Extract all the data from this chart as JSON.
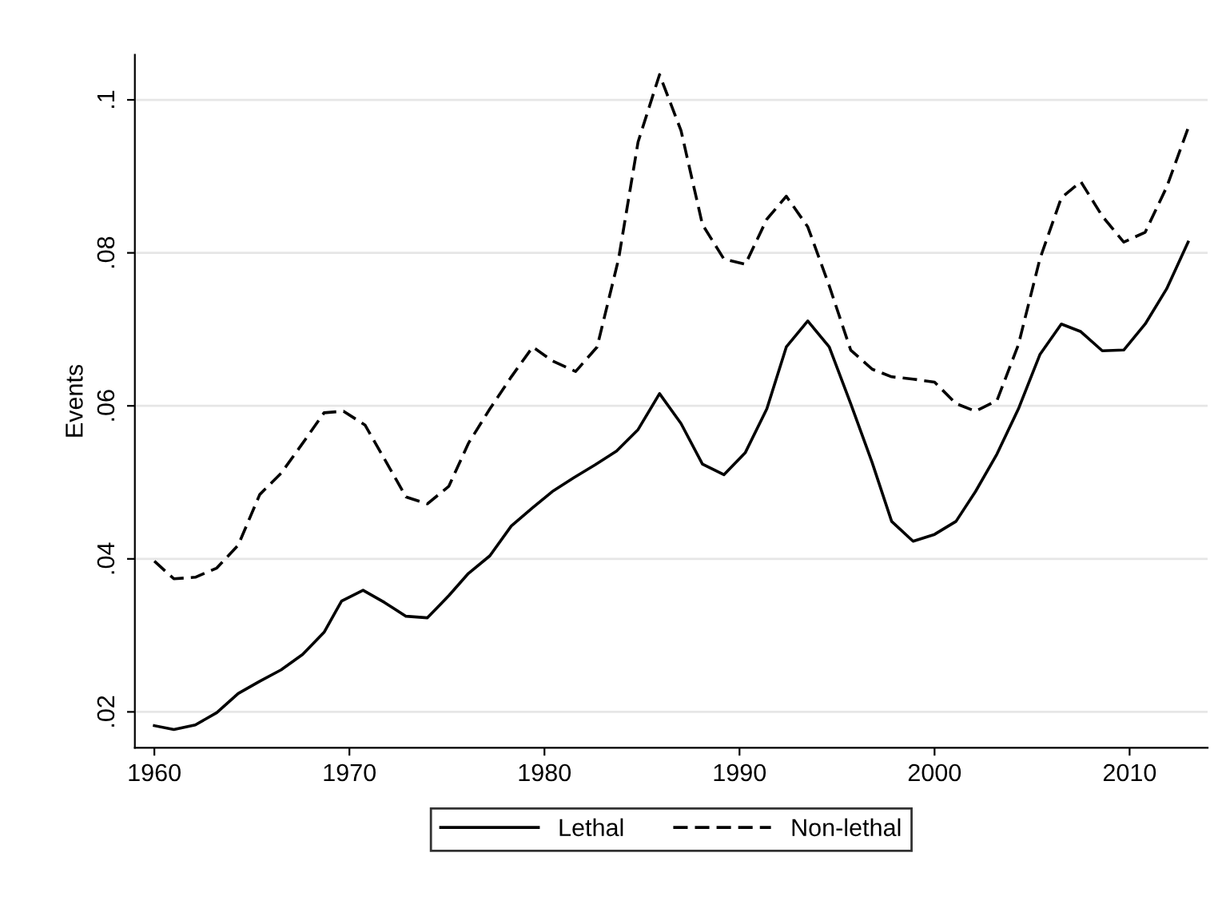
{
  "chart_data": {
    "type": "line",
    "ylabel": "Events",
    "xlim": [
      1959,
      2014
    ],
    "xticks": [
      1960,
      1970,
      1980,
      1990,
      2000,
      2010
    ],
    "ylim": [
      0.0153,
      0.1059
    ],
    "yticks": [
      {
        "value": 0.02,
        "label": ".02"
      },
      {
        "value": 0.04,
        "label": ".04"
      },
      {
        "value": 0.06,
        "label": ".06"
      },
      {
        "value": 0.08,
        "label": ".08"
      },
      {
        "value": 0.1,
        "label": ".1"
      }
    ],
    "grid": "y",
    "legend": "bottom",
    "marker": "none",
    "series": [
      {
        "name": "Lethal",
        "color": "#000000",
        "line_style": "solid",
        "x": [
          1960.0,
          1961.0,
          1962.1,
          1963.2,
          1964.3,
          1965.4,
          1966.5,
          1967.6,
          1968.7,
          1969.6,
          1970.7,
          1971.8,
          1972.9,
          1974.0,
          1975.1,
          1976.1,
          1977.2,
          1978.3,
          1979.4,
          1980.4,
          1981.5,
          1982.6,
          1983.7,
          1984.8,
          1985.9,
          1987.0,
          1988.1,
          1989.2,
          1990.3,
          1991.4,
          1992.4,
          1993.5,
          1994.6,
          1995.7,
          1996.8,
          1997.8,
          1998.9,
          2000.0,
          2001.1,
          2002.1,
          2003.2,
          2004.3,
          2005.4,
          2006.5,
          2007.5,
          2008.6,
          2009.7,
          2010.8,
          2011.9,
          2013.0
        ],
        "values": [
          0.0182,
          0.0177,
          0.0183,
          0.0199,
          0.0224,
          0.024,
          0.0255,
          0.0275,
          0.0304,
          0.0345,
          0.0359,
          0.0343,
          0.0325,
          0.0323,
          0.0352,
          0.0381,
          0.0404,
          0.0443,
          0.0467,
          0.0488,
          0.0506,
          0.0523,
          0.0541,
          0.0569,
          0.0616,
          0.0577,
          0.0524,
          0.051,
          0.0539,
          0.0596,
          0.0677,
          0.0711,
          0.0677,
          0.0603,
          0.0526,
          0.0449,
          0.0423,
          0.0432,
          0.0449,
          0.0488,
          0.0537,
          0.0596,
          0.0667,
          0.0707,
          0.0697,
          0.0672,
          0.0673,
          0.0707,
          0.0753,
          0.0814
        ]
      },
      {
        "name": "Non-lethal",
        "color": "#000000",
        "line_style": "dashed",
        "x": [
          1960.0,
          1961.0,
          1962.1,
          1963.2,
          1964.3,
          1965.4,
          1966.5,
          1967.6,
          1968.7,
          1969.7,
          1970.8,
          1971.9,
          1972.9,
          1974.0,
          1975.1,
          1976.1,
          1977.2,
          1978.3,
          1979.4,
          1980.4,
          1981.6,
          1982.7,
          1983.8,
          1984.8,
          1985.9,
          1987.0,
          1988.1,
          1989.2,
          1990.3,
          1991.4,
          1992.4,
          1993.5,
          1994.6,
          1995.7,
          1996.8,
          1997.8,
          1998.9,
          2000.0,
          2001.1,
          2002.1,
          2003.2,
          2004.3,
          2005.4,
          2006.5,
          2007.5,
          2008.6,
          2009.7,
          2010.8,
          2011.9,
          2013.0
        ],
        "values": [
          0.0397,
          0.0374,
          0.0376,
          0.0388,
          0.0418,
          0.0484,
          0.0512,
          0.0551,
          0.0591,
          0.0593,
          0.0575,
          0.0526,
          0.0481,
          0.0472,
          0.0495,
          0.0551,
          0.0596,
          0.0638,
          0.0677,
          0.0659,
          0.0645,
          0.0677,
          0.0792,
          0.0945,
          0.1033,
          0.096,
          0.0837,
          0.0792,
          0.0785,
          0.0844,
          0.0874,
          0.0834,
          0.0757,
          0.0673,
          0.0648,
          0.0638,
          0.0635,
          0.0631,
          0.0603,
          0.0593,
          0.0607,
          0.068,
          0.0792,
          0.0872,
          0.0893,
          0.0848,
          0.0814,
          0.0827,
          0.0886,
          0.0963
        ]
      }
    ]
  }
}
